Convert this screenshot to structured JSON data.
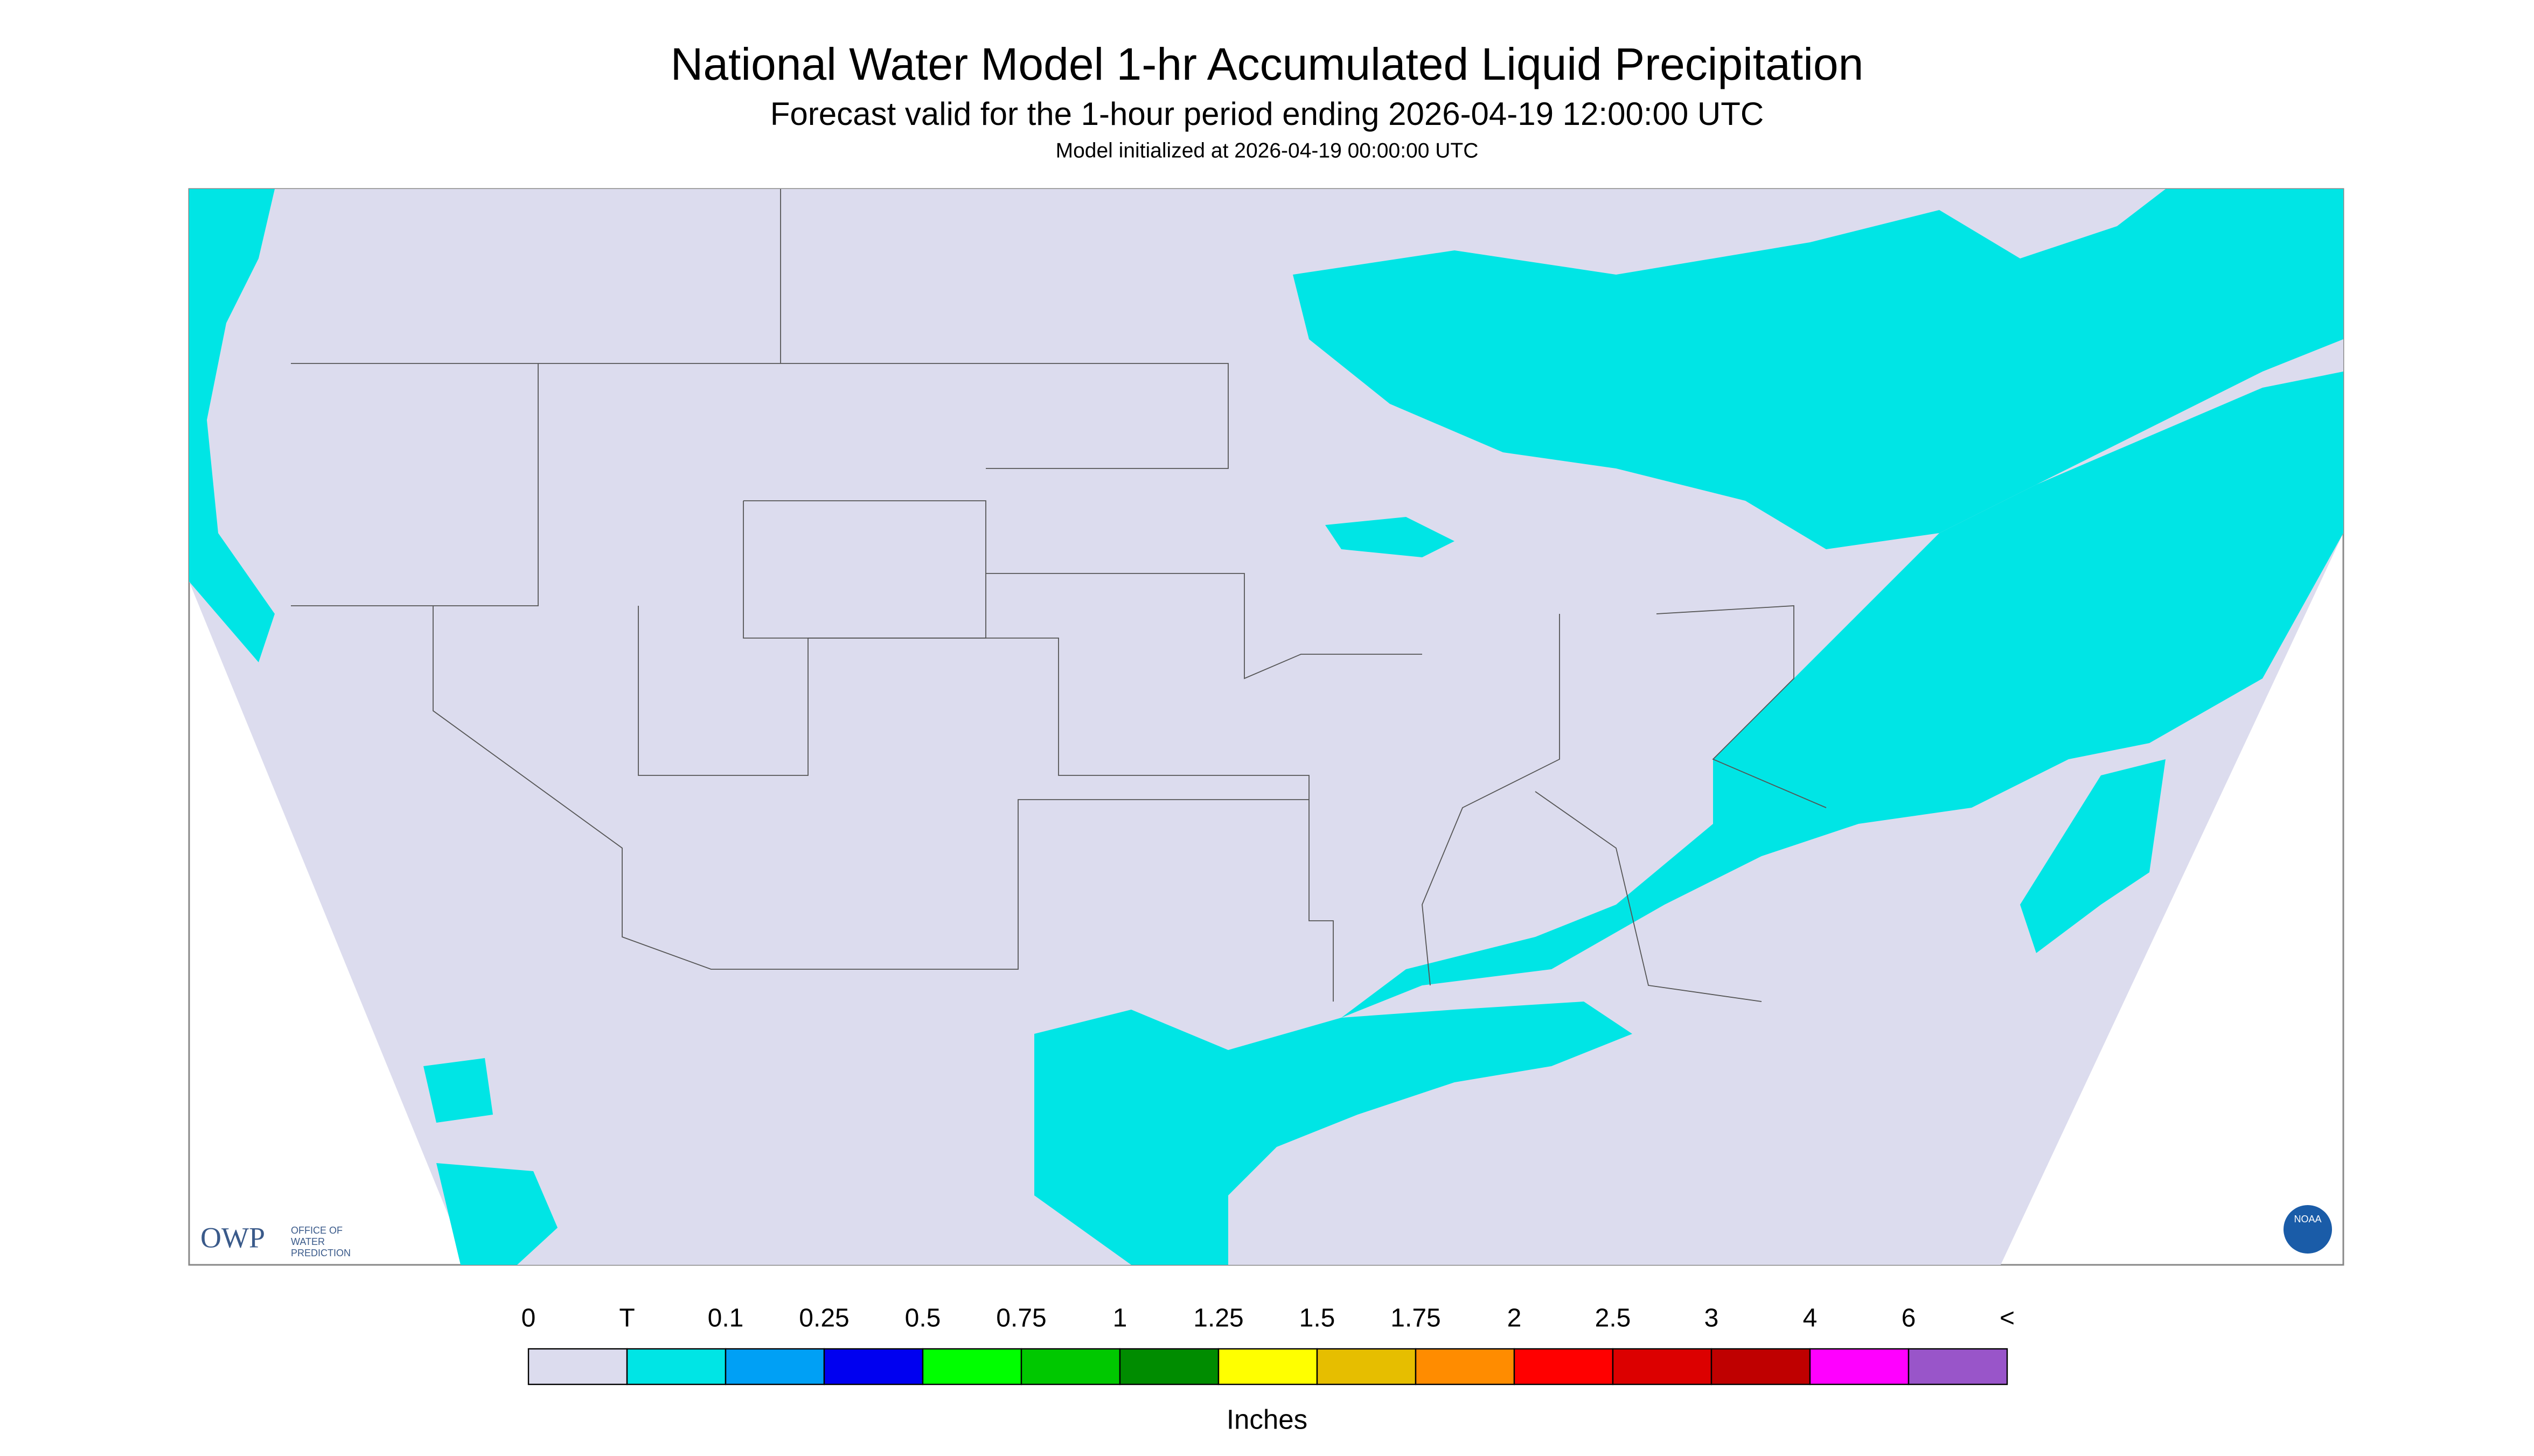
{
  "header": {
    "title": "National Water Model 1-hr Accumulated Liquid Precipitation",
    "subtitle": "Forecast valid for the 1-hour period ending 2026-04-19 12:00:00 UTC",
    "note": "Model initialized at 2026-04-19 00:00:00 UTC"
  },
  "logos": {
    "owp": "OWP",
    "owp_lines": [
      "OFFICE OF",
      "WATER",
      "PREDICTION"
    ],
    "noaa": "NOAA"
  },
  "legend": {
    "ticks": [
      "0",
      "T",
      "0.1",
      "0.25",
      "0.5",
      "0.75",
      "1",
      "1.25",
      "1.5",
      "1.75",
      "2",
      "2.5",
      "3",
      "4",
      "6",
      "<"
    ],
    "colors": [
      "#dcdcee",
      "#00e5e5",
      "#00a0f5",
      "#0000f0",
      "#00ff00",
      "#00c800",
      "#008c00",
      "#ffff00",
      "#e6be00",
      "#ff8c00",
      "#ff0000",
      "#dc0000",
      "#bf0000",
      "#ff00ff",
      "#9955c9"
    ],
    "unit": "Inches"
  }
}
